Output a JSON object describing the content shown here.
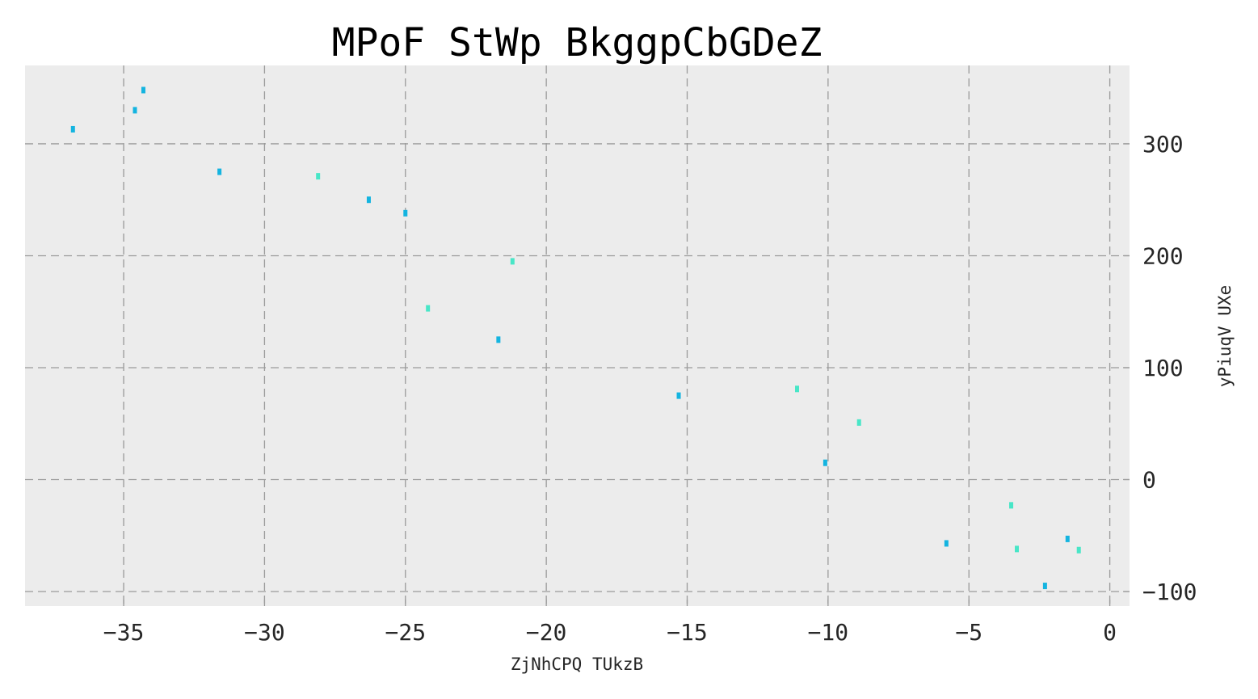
{
  "chart_data": {
    "type": "scatter",
    "title": "MPoF StWp BkggpCbGDeZ",
    "xlabel": "ZjNhCPQ TUkzB",
    "ylabel": "yPiuqV UXe",
    "xlim": [
      -38.5,
      0.7
    ],
    "ylim": [
      -113,
      370
    ],
    "xticks": [
      -35,
      -30,
      -25,
      -20,
      -15,
      -10,
      -5,
      0
    ],
    "xtick_labels": [
      "−35",
      "−30",
      "−25",
      "−20",
      "−15",
      "−10",
      "−5",
      "0"
    ],
    "yticks": [
      -100,
      0,
      100,
      200,
      300
    ],
    "ytick_labels": [
      "−100",
      "0",
      "100",
      "200",
      "300"
    ],
    "grid": true,
    "y_axis_side": "right",
    "background": "#ececec",
    "series": [
      {
        "color": "#14b4e0",
        "points": [
          [
            -36.8,
            313
          ],
          [
            -34.6,
            330
          ],
          [
            -34.3,
            348
          ],
          [
            -31.6,
            275
          ],
          [
            -26.3,
            250
          ],
          [
            -25.0,
            238
          ],
          [
            -21.7,
            125
          ],
          [
            -15.3,
            75
          ],
          [
            -10.1,
            15
          ],
          [
            -5.8,
            -57
          ],
          [
            -2.3,
            -95
          ],
          [
            -1.5,
            -53
          ]
        ]
      },
      {
        "color": "#48e6c7",
        "points": [
          [
            -28.1,
            271
          ],
          [
            -24.2,
            153
          ],
          [
            -21.2,
            195
          ],
          [
            -11.1,
            81
          ],
          [
            -8.9,
            51
          ],
          [
            -3.5,
            -23
          ],
          [
            -3.3,
            -62
          ],
          [
            -1.1,
            -63
          ]
        ]
      }
    ]
  }
}
